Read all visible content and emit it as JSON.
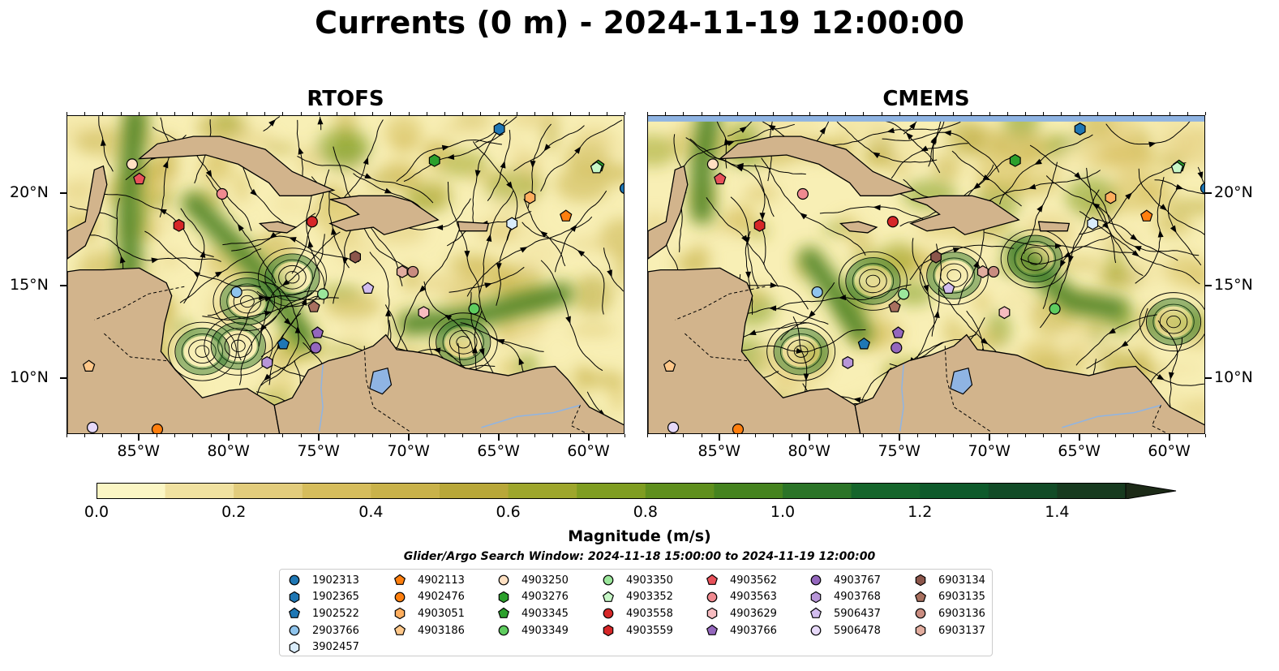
{
  "title": "Currents (0 m) - 2024-11-19 12:00:00",
  "panels": [
    {
      "title": "RTOFS"
    },
    {
      "title": "CMEMS"
    }
  ],
  "axes": {
    "x_ticks": [
      "85°W",
      "80°W",
      "75°W",
      "70°W",
      "65°W",
      "60°W"
    ],
    "y_ticks": [
      "20°N",
      "15°N",
      "10°N"
    ]
  },
  "colorbar": {
    "label": "Magnitude (m/s)",
    "ticks": [
      "0.0",
      "0.2",
      "0.4",
      "0.6",
      "0.8",
      "1.0",
      "1.2",
      "1.4"
    ],
    "min": 0.0,
    "max": 1.5,
    "step": 0.1,
    "colors": [
      "#fbf6c4",
      "#f0e1a0",
      "#e2cc7c",
      "#d6bd5c",
      "#c9b24a",
      "#b8a739",
      "#9ea62c",
      "#7f9d21",
      "#5f8f1d",
      "#45831f",
      "#2b7428",
      "#15652b",
      "#0e5a2b",
      "#124b27",
      "#173a1f",
      "#1c2a17"
    ]
  },
  "search_window": "Glider/Argo Search Window: 2024-11-18 15:00:00 to 2024-11-19 12:00:00",
  "legend": [
    {
      "id": "1902313",
      "color": "#1f77b4",
      "shape": "circle"
    },
    {
      "id": "1902365",
      "color": "#1f77b4",
      "shape": "hexagon"
    },
    {
      "id": "1902522",
      "color": "#1f77b4",
      "shape": "pentagon"
    },
    {
      "id": "2903766",
      "color": "#8fc4ec",
      "shape": "circle"
    },
    {
      "id": "3902457",
      "color": "#d9ecfb",
      "shape": "hexagon"
    },
    {
      "id": "4902113",
      "color": "#ff7f0e",
      "shape": "pentagon"
    },
    {
      "id": "4902476",
      "color": "#ff7f0e",
      "shape": "circle"
    },
    {
      "id": "4903051",
      "color": "#ffae5e",
      "shape": "hexagon"
    },
    {
      "id": "4903186",
      "color": "#ffc88a",
      "shape": "pentagon"
    },
    {
      "id": "4903250",
      "color": "#ffe0c2",
      "shape": "circle"
    },
    {
      "id": "4903276",
      "color": "#2ca02c",
      "shape": "hexagon"
    },
    {
      "id": "4903345",
      "color": "#2ca02c",
      "shape": "pentagon"
    },
    {
      "id": "4903349",
      "color": "#5fcc5f",
      "shape": "circle"
    },
    {
      "id": "4903350",
      "color": "#9be69b",
      "shape": "circle"
    },
    {
      "id": "4903352",
      "color": "#c7f7c7",
      "shape": "pentagon"
    },
    {
      "id": "4903558",
      "color": "#d62728",
      "shape": "circle"
    },
    {
      "id": "4903559",
      "color": "#d62728",
      "shape": "hexagon"
    },
    {
      "id": "4903562",
      "color": "#e8515a",
      "shape": "pentagon"
    },
    {
      "id": "4903563",
      "color": "#f08a90",
      "shape": "circle"
    },
    {
      "id": "4903629",
      "color": "#f7bcc0",
      "shape": "hexagon"
    },
    {
      "id": "4903766",
      "color": "#9467bd",
      "shape": "pentagon"
    },
    {
      "id": "4903767",
      "color": "#9467bd",
      "shape": "circle"
    },
    {
      "id": "4903768",
      "color": "#b896d8",
      "shape": "hexagon"
    },
    {
      "id": "5906437",
      "color": "#d2bdef",
      "shape": "pentagon"
    },
    {
      "id": "5906478",
      "color": "#e7d9f9",
      "shape": "circle"
    },
    {
      "id": "6903134",
      "color": "#8c564b",
      "shape": "hexagon"
    },
    {
      "id": "6903135",
      "color": "#a8705f",
      "shape": "pentagon"
    },
    {
      "id": "6903136",
      "color": "#c98c80",
      "shape": "circle"
    },
    {
      "id": "6903137",
      "color": "#e2ad9f",
      "shape": "hexagon"
    }
  ],
  "floats_rtofs": [
    {
      "id": "1902313",
      "lon": -58.0,
      "lat": 20.3
    },
    {
      "id": "1902365",
      "lon": -65.0,
      "lat": 23.5
    },
    {
      "id": "1902522",
      "lon": -77.0,
      "lat": 11.9
    },
    {
      "id": "2903766",
      "lon": -79.6,
      "lat": 14.7
    },
    {
      "id": "3902457",
      "lon": -64.3,
      "lat": 18.4
    },
    {
      "id": "4902113",
      "lon": -61.3,
      "lat": 18.8
    },
    {
      "id": "4902476",
      "lon": -84.0,
      "lat": 7.3
    },
    {
      "id": "4903051",
      "lon": -63.3,
      "lat": 19.8
    },
    {
      "id": "4903186",
      "lon": -87.8,
      "lat": 10.7
    },
    {
      "id": "4903250",
      "lon": -85.4,
      "lat": 21.6
    },
    {
      "id": "4903276",
      "lon": -68.6,
      "lat": 21.8
    },
    {
      "id": "4903345",
      "lon": -59.5,
      "lat": 21.5
    },
    {
      "id": "4903349",
      "lon": -66.4,
      "lat": 13.8
    },
    {
      "id": "4903350",
      "lon": -74.8,
      "lat": 14.6
    },
    {
      "id": "4903352",
      "lon": -59.6,
      "lat": 21.4
    },
    {
      "id": "4903558",
      "lon": -75.4,
      "lat": 18.5
    },
    {
      "id": "4903559",
      "lon": -82.8,
      "lat": 18.3
    },
    {
      "id": "4903562",
      "lon": -85.0,
      "lat": 20.8
    },
    {
      "id": "4903563",
      "lon": -80.4,
      "lat": 20.0
    },
    {
      "id": "4903629",
      "lon": -69.2,
      "lat": 13.6
    },
    {
      "id": "4903766",
      "lon": -75.1,
      "lat": 12.5
    },
    {
      "id": "4903767",
      "lon": -75.2,
      "lat": 11.7
    },
    {
      "id": "4903768",
      "lon": -77.9,
      "lat": 10.9
    },
    {
      "id": "5906437",
      "lon": -72.3,
      "lat": 14.9
    },
    {
      "id": "5906478",
      "lon": -87.6,
      "lat": 7.4
    },
    {
      "id": "6903134",
      "lon": -73.0,
      "lat": 16.6
    },
    {
      "id": "6903135",
      "lon": -75.3,
      "lat": 13.9
    },
    {
      "id": "6903136",
      "lon": -69.8,
      "lat": 15.8
    },
    {
      "id": "6903137",
      "lon": -70.4,
      "lat": 15.8
    }
  ],
  "floats_cmems": [
    {
      "id": "1902313",
      "lon": -58.0,
      "lat": 20.3
    },
    {
      "id": "1902365",
      "lon": -65.0,
      "lat": 23.5
    },
    {
      "id": "1902522",
      "lon": -77.0,
      "lat": 11.9
    },
    {
      "id": "2903766",
      "lon": -79.6,
      "lat": 14.7
    },
    {
      "id": "3902457",
      "lon": -64.3,
      "lat": 18.4
    },
    {
      "id": "4902113",
      "lon": -61.3,
      "lat": 18.8
    },
    {
      "id": "4902476",
      "lon": -84.0,
      "lat": 7.3
    },
    {
      "id": "4903051",
      "lon": -63.3,
      "lat": 19.8
    },
    {
      "id": "4903186",
      "lon": -87.8,
      "lat": 10.7
    },
    {
      "id": "4903250",
      "lon": -85.4,
      "lat": 21.6
    },
    {
      "id": "4903276",
      "lon": -68.6,
      "lat": 21.8
    },
    {
      "id": "4903345",
      "lon": -59.5,
      "lat": 21.5
    },
    {
      "id": "4903349",
      "lon": -66.4,
      "lat": 13.8
    },
    {
      "id": "4903350",
      "lon": -74.8,
      "lat": 14.6
    },
    {
      "id": "4903352",
      "lon": -59.6,
      "lat": 21.4
    },
    {
      "id": "4903558",
      "lon": -75.4,
      "lat": 18.5
    },
    {
      "id": "4903559",
      "lon": -82.8,
      "lat": 18.3
    },
    {
      "id": "4903562",
      "lon": -85.0,
      "lat": 20.8
    },
    {
      "id": "4903563",
      "lon": -80.4,
      "lat": 20.0
    },
    {
      "id": "4903629",
      "lon": -69.2,
      "lat": 13.6
    },
    {
      "id": "4903766",
      "lon": -75.1,
      "lat": 12.5
    },
    {
      "id": "4903767",
      "lon": -75.2,
      "lat": 11.7
    },
    {
      "id": "4903768",
      "lon": -77.9,
      "lat": 10.9
    },
    {
      "id": "5906437",
      "lon": -72.3,
      "lat": 14.9
    },
    {
      "id": "5906478",
      "lon": -87.6,
      "lat": 7.4
    },
    {
      "id": "6903134",
      "lon": -73.0,
      "lat": 16.6
    },
    {
      "id": "6903135",
      "lon": -75.3,
      "lat": 13.9
    },
    {
      "id": "6903136",
      "lon": -69.8,
      "lat": 15.8
    },
    {
      "id": "6903137",
      "lon": -70.4,
      "lat": 15.8
    }
  ],
  "map_extent": {
    "lon": [
      -89,
      -58
    ],
    "lat": [
      7,
      24.2
    ]
  },
  "colors": {
    "land": "#d2b48c",
    "lake": "#8fb4e3",
    "ocean_low": "#f8efb5"
  }
}
